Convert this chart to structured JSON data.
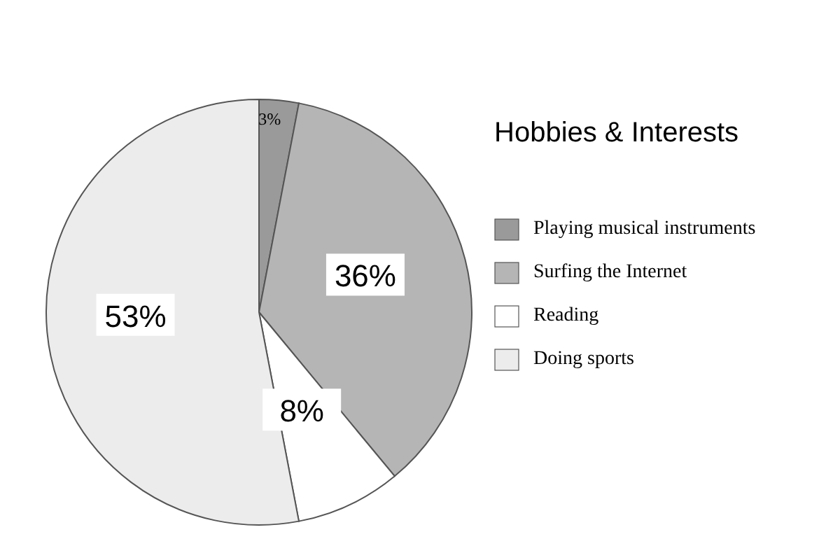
{
  "chart_data": {
    "type": "pie",
    "title": "Hobbies & Interests",
    "categories": [
      "Playing musical instruments",
      "Surfing the Internet",
      "Reading",
      "Doing sports"
    ],
    "values": [
      3,
      36,
      8,
      53
    ],
    "colors": [
      "#9a9a9a",
      "#b5b5b5",
      "#ffffff",
      "#ececec"
    ],
    "value_labels": [
      "3%",
      "36%",
      "8%",
      "53%"
    ],
    "legend": "right"
  }
}
